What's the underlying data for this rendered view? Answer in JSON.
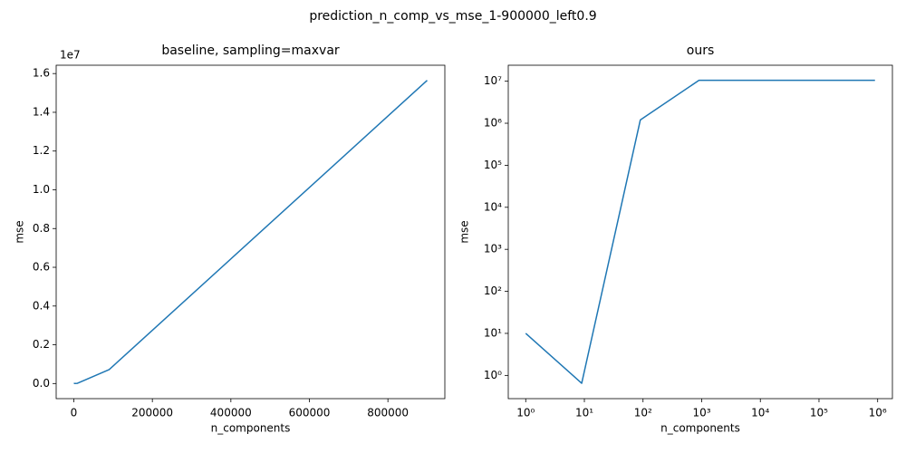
{
  "title": "prediction_n_comp_vs_mse_1-900000_left0.9",
  "chart_data": [
    {
      "type": "line",
      "title": "baseline, sampling=maxvar",
      "x_label": "n_components",
      "y_label": "mse",
      "x": [
        1,
        9,
        90,
        900,
        9000,
        90000,
        900000
      ],
      "values": [
        10,
        10,
        500,
        5000,
        10000,
        720000,
        15650000
      ],
      "color": "#1f77b4",
      "xlim": [
        -45000,
        945000
      ],
      "xticks": [
        0,
        200000,
        400000,
        600000,
        800000
      ],
      "ylim": [
        -780000,
        16430000
      ],
      "y_offset_label": "1e7",
      "yticks": [
        {
          "value": 0,
          "label": "0.0"
        },
        {
          "value": 2000000,
          "label": "0.2"
        },
        {
          "value": 4000000,
          "label": "0.4"
        },
        {
          "value": 6000000,
          "label": "0.6"
        },
        {
          "value": 8000000,
          "label": "0.8"
        },
        {
          "value": 10000000,
          "label": "1.0"
        },
        {
          "value": 12000000,
          "label": "1.2"
        },
        {
          "value": 14000000,
          "label": "1.4"
        },
        {
          "value": 16000000,
          "label": "1.6"
        }
      ],
      "xlog": false,
      "ylog": false
    },
    {
      "type": "line",
      "title": "ours",
      "x_label": "n_components",
      "y_label": "mse",
      "x": [
        1,
        9,
        90,
        900,
        9000,
        90000,
        900000
      ],
      "values": [
        10,
        0.65,
        1200000,
        10500000,
        10500000,
        10500000,
        10500000
      ],
      "color": "#1f77b4",
      "xlim": [
        0.504,
        1785000
      ],
      "xticks": [
        {
          "value": 1,
          "label": "10⁰"
        },
        {
          "value": 10,
          "label": "10¹"
        },
        {
          "value": 100,
          "label": "10²"
        },
        {
          "value": 1000,
          "label": "10³"
        },
        {
          "value": 10000,
          "label": "10⁴"
        },
        {
          "value": 100000,
          "label": "10⁵"
        },
        {
          "value": 1000000,
          "label": "10⁶"
        }
      ],
      "ylim": [
        0.28,
        24000000
      ],
      "yticks": [
        {
          "value": 1,
          "label": "10⁰"
        },
        {
          "value": 10,
          "label": "10¹"
        },
        {
          "value": 100,
          "label": "10²"
        },
        {
          "value": 1000,
          "label": "10³"
        },
        {
          "value": 10000,
          "label": "10⁴"
        },
        {
          "value": 100000,
          "label": "10⁵"
        },
        {
          "value": 1000000,
          "label": "10⁶"
        },
        {
          "value": 10000000,
          "label": "10⁷"
        }
      ],
      "xlog": true,
      "ylog": true
    }
  ]
}
